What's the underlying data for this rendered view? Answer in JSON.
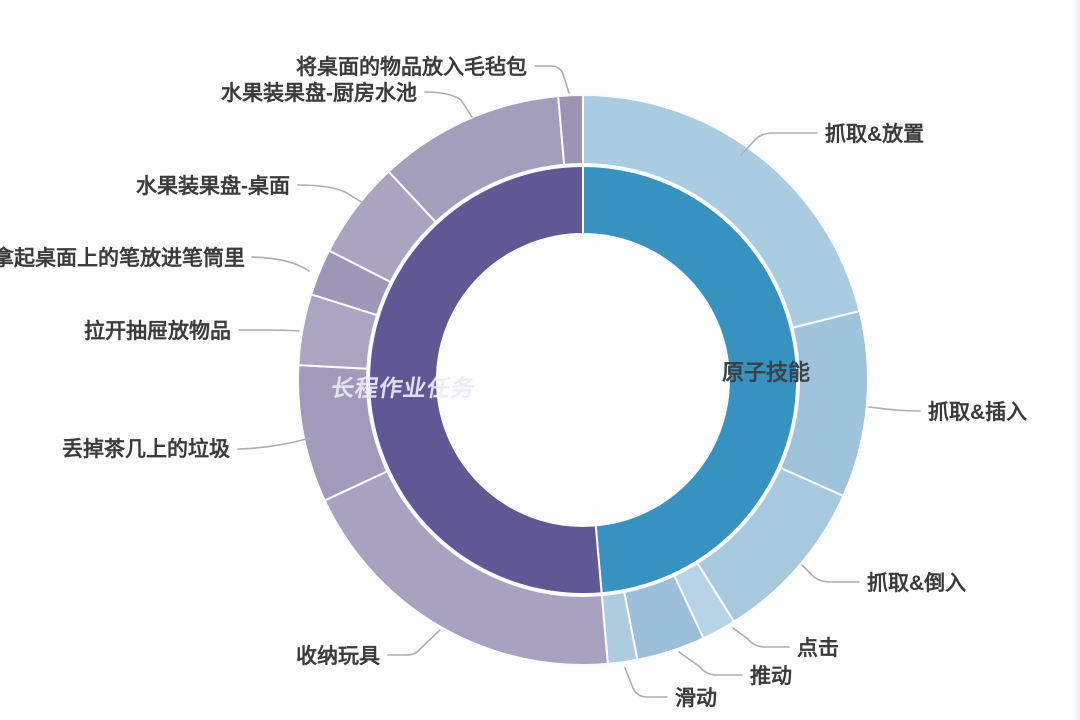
{
  "page": {
    "background": "#fdfdfd"
  },
  "chart_data": {
    "type": "pie",
    "subtype": "sunburst-donut-two-rings",
    "title": "",
    "legend": "none",
    "direction": "clockwise",
    "start_angle_deg": 0,
    "units": "degrees of arc (values estimated from pixels)",
    "rings": {
      "inner": {
        "name": "categories",
        "segments": [
          {
            "label": "原子技能",
            "span_deg": 175,
            "color": "#3792bf",
            "label_color": "#3a4149"
          },
          {
            "label": "长程作业任务",
            "span_deg": 185,
            "color": "#605795",
            "label_color": "#eceaf6"
          }
        ]
      },
      "outer": {
        "name": "items",
        "segments": [
          {
            "label": "抓取&放置",
            "parent": "原子技能",
            "span_deg": 76,
            "color": "#a9cce0"
          },
          {
            "label": "抓取&插入",
            "parent": "原子技能",
            "span_deg": 38,
            "color": "#9fc3da"
          },
          {
            "label": "抓取&倒入",
            "parent": "原子技能",
            "span_deg": 34,
            "color": "#a6c9de"
          },
          {
            "label": "点击",
            "parent": "原子技能",
            "span_deg": 7,
            "color": "#b7d3e6"
          },
          {
            "label": "推动",
            "parent": "原子技能",
            "span_deg": 14,
            "color": "#9bbfd8"
          },
          {
            "label": "滑动",
            "parent": "原子技能",
            "span_deg": 6,
            "color": "#adccdf"
          },
          {
            "label": "收纳玩具",
            "parent": "长程作业任务",
            "span_deg": 70,
            "color": "#a8a2c0"
          },
          {
            "label": "丢掉茶几上的垃圾",
            "parent": "长程作业任务",
            "span_deg": 28,
            "color": "#a19aba"
          },
          {
            "label": "拉开抽屉放物品",
            "parent": "长程作业任务",
            "span_deg": 14.5,
            "color": "#aba5c2"
          },
          {
            "label": "拿起桌面上的笔放进笔筒里",
            "parent": "长程作业任务",
            "span_deg": 9.5,
            "color": "#9d96b6"
          },
          {
            "label": "水果装果盘-桌面",
            "parent": "长程作业任务",
            "span_deg": 20,
            "color": "#aaa4c1"
          },
          {
            "label": "水果装果盘-厨房水池",
            "parent": "长程作业任务",
            "span_deg": 38,
            "color": "#a49ebd"
          },
          {
            "label": "将桌面的物品放入毛毡包",
            "parent": "长程作业任务",
            "span_deg": 5,
            "color": "#9c94b3"
          }
        ]
      }
    }
  }
}
